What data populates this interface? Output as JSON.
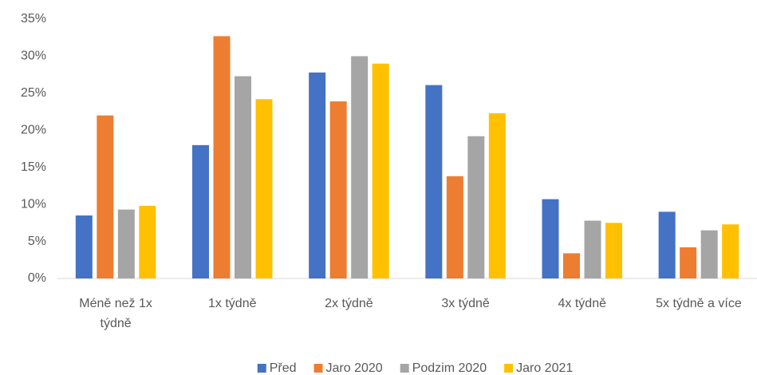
{
  "chart_data": {
    "type": "bar",
    "categories": [
      "Méně než 1x týdně",
      "1x týdně",
      "2x týdně",
      "3x týdně",
      "4x týdně",
      "5x týdně a více"
    ],
    "series": [
      {
        "name": "Před",
        "color": "#4472c4",
        "values": [
          8.5,
          18,
          27.8,
          26.1,
          10.7,
          9
        ]
      },
      {
        "name": "Jaro 2020",
        "color": "#ed7d31",
        "values": [
          22,
          32.7,
          23.9,
          13.8,
          3.4,
          4.2
        ]
      },
      {
        "name": "Podzim 2020",
        "color": "#a5a5a5",
        "values": [
          9.3,
          27.3,
          30,
          19.2,
          7.8,
          6.5
        ]
      },
      {
        "name": "Jaro 2021",
        "color": "#ffc000",
        "values": [
          9.8,
          24.2,
          29,
          22.3,
          7.5,
          7.3
        ]
      }
    ],
    "ylim": [
      0,
      35
    ],
    "yticks": [
      {
        "value": 0,
        "label": "0%"
      },
      {
        "value": 5,
        "label": "5%"
      },
      {
        "value": 10,
        "label": "10%"
      },
      {
        "value": 15,
        "label": "15%"
      },
      {
        "value": 20,
        "label": "20%"
      },
      {
        "value": 25,
        "label": "25%"
      },
      {
        "value": 30,
        "label": "30%"
      },
      {
        "value": 35,
        "label": "35%"
      }
    ],
    "grid": false,
    "legend": "bottom"
  }
}
